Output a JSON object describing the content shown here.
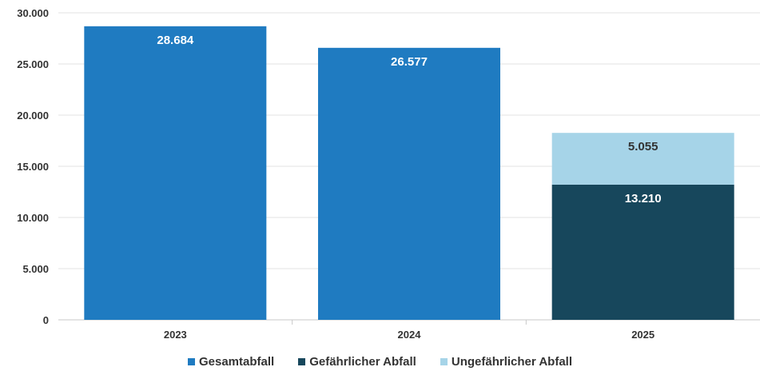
{
  "chart_data": {
    "type": "bar",
    "stacked": true,
    "title": "",
    "xlabel": "",
    "ylabel": "",
    "categories": [
      "2023",
      "2024",
      "2025"
    ],
    "ylim": [
      0,
      30000
    ],
    "yticks": [
      0,
      5000,
      10000,
      15000,
      20000,
      25000,
      30000
    ],
    "ytick_labels": [
      "0",
      "5.000",
      "10.000",
      "15.000",
      "20.000",
      "25.000",
      "30.000"
    ],
    "grid": true,
    "legend_position": "bottom",
    "series": [
      {
        "name": "Gesamtabfall",
        "values": [
          28684,
          26577,
          null
        ],
        "labels": [
          "28.684",
          "26.577",
          ""
        ],
        "color": "#1f7bc1",
        "label_color": "#ffffff"
      },
      {
        "name": "Gefährlicher Abfall",
        "values": [
          null,
          null,
          13210
        ],
        "labels": [
          "",
          "",
          "13.210"
        ],
        "color": "#17475c",
        "label_color": "#ffffff"
      },
      {
        "name": "Ungefährlicher Abfall",
        "values": [
          null,
          null,
          5055
        ],
        "labels": [
          "",
          "",
          "5.055"
        ],
        "color": "#a6d4e8",
        "label_color": "#333333"
      }
    ]
  }
}
